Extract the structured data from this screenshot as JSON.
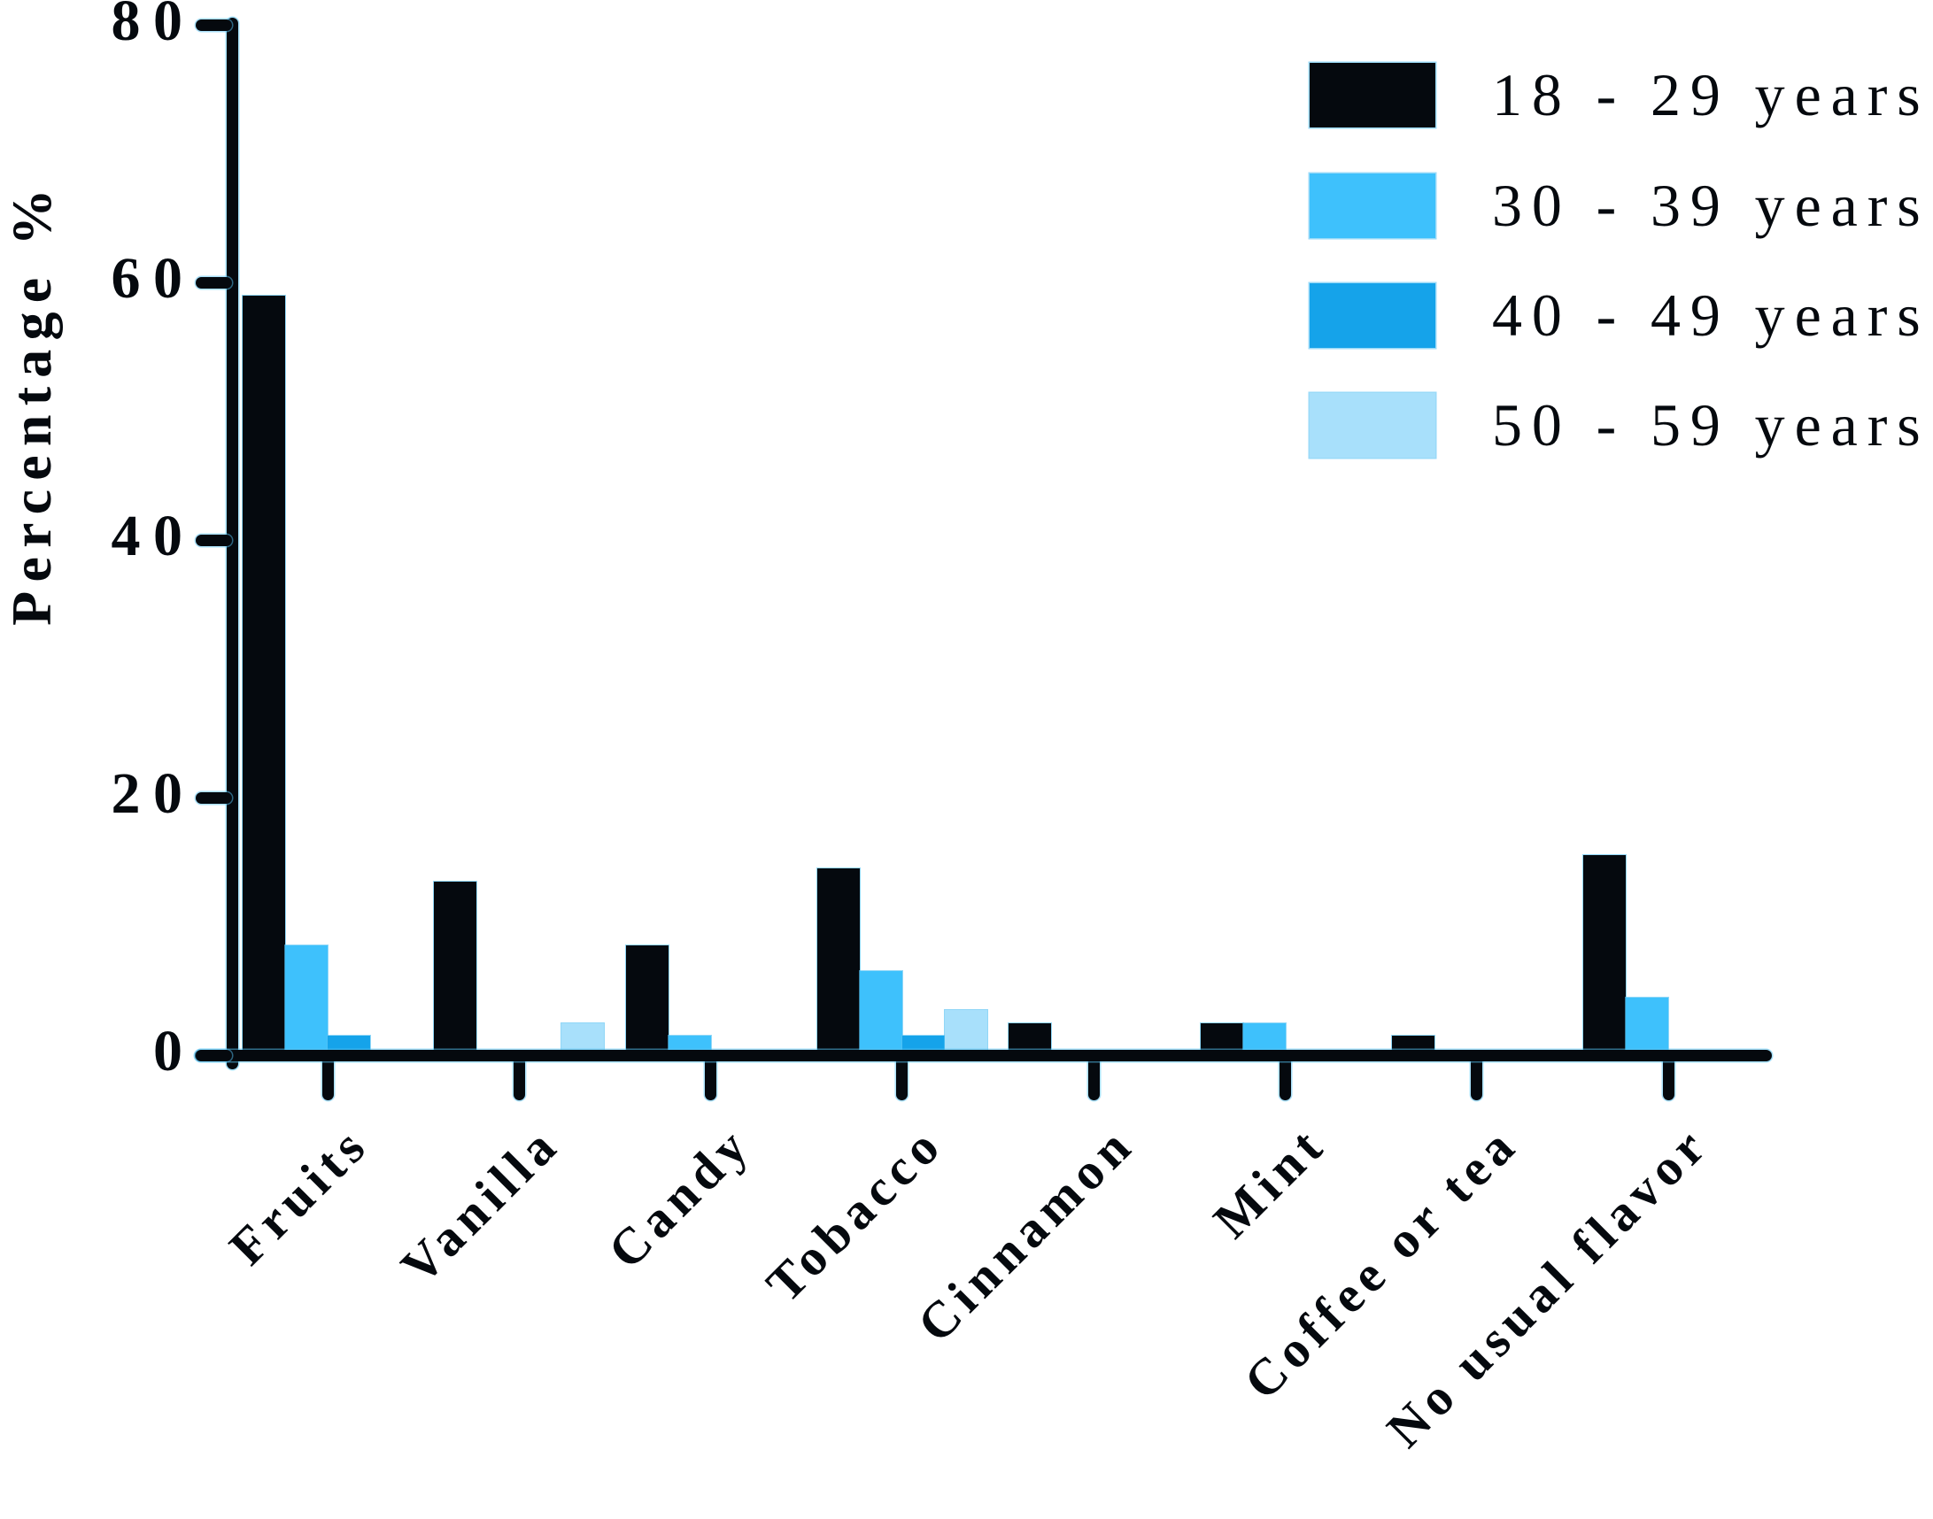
{
  "chart_data": {
    "type": "bar",
    "title": "",
    "ylabel": "Percentage %",
    "xlabel": "",
    "ylim": [
      0,
      80
    ],
    "yticks": [
      0,
      20,
      40,
      60,
      80
    ],
    "ytick_labels": [
      "0",
      "20",
      "40",
      "60",
      "80"
    ],
    "grid": false,
    "legend_position": "top-right",
    "categories": [
      "Fruits",
      "Vanilla",
      "Candy",
      "Tobacco",
      "Cinnamon",
      "Mint",
      "Coffee or tea",
      "No usual flavor"
    ],
    "series": [
      {
        "name": "18 - 29 years",
        "color": "#05090e",
        "values": [
          59,
          13.5,
          8.5,
          14.5,
          2.5,
          2.5,
          1.5,
          15.5
        ]
      },
      {
        "name": "30 - 39 years",
        "color": "#3ec1fc",
        "values": [
          8.5,
          0,
          1.5,
          6.5,
          0,
          2.5,
          0,
          4.5
        ]
      },
      {
        "name": "40 - 49 years",
        "color": "#15a3ea",
        "values": [
          1.5,
          0,
          0,
          1.5,
          0,
          0,
          0,
          0
        ]
      },
      {
        "name": "50 - 59 years",
        "color": "#a8e0fb",
        "values": [
          0,
          2.5,
          0,
          3.5,
          0,
          0,
          0,
          0
        ]
      }
    ]
  }
}
